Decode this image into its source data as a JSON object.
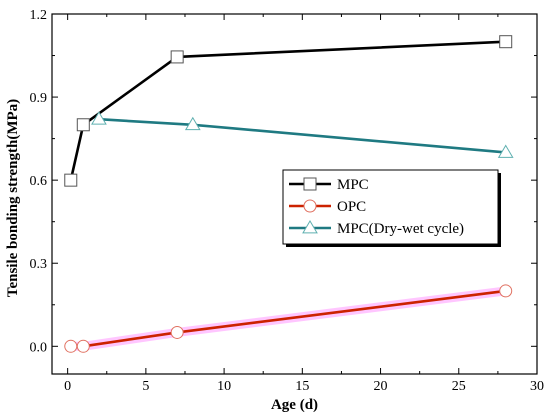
{
  "chart_data": {
    "type": "line",
    "xlabel": "Age (d)",
    "ylabel": "Tensile bonding strength(MPa)",
    "xlim": [
      -1,
      30
    ],
    "ylim": [
      -0.1,
      1.2
    ],
    "xticks": [
      0,
      5,
      10,
      15,
      20,
      25,
      30
    ],
    "yticks": [
      0.0,
      0.3,
      0.6,
      0.9,
      1.2
    ],
    "ytick_labels": [
      "0.0",
      "0.3",
      "0.6",
      "0.9",
      "1.2"
    ],
    "grid": false,
    "legend_position": "center-right",
    "series": [
      {
        "name": "MPC",
        "color": "#000000",
        "marker": "square",
        "x": [
          0.2,
          1,
          7,
          28
        ],
        "y": [
          0.6,
          0.8,
          1.045,
          1.1
        ]
      },
      {
        "name": "OPC",
        "color": "#cc2200",
        "marker": "circle",
        "highlight": "#ffb3ff",
        "x": [
          0.2,
          1,
          7,
          28
        ],
        "y": [
          0.0,
          0.0,
          0.05,
          0.2
        ]
      },
      {
        "name": "MPC(Dry-wet cycle)",
        "color": "#1f7a82",
        "marker": "triangle",
        "x": [
          2,
          8,
          28
        ],
        "y": [
          0.82,
          0.8,
          0.7
        ]
      }
    ]
  }
}
